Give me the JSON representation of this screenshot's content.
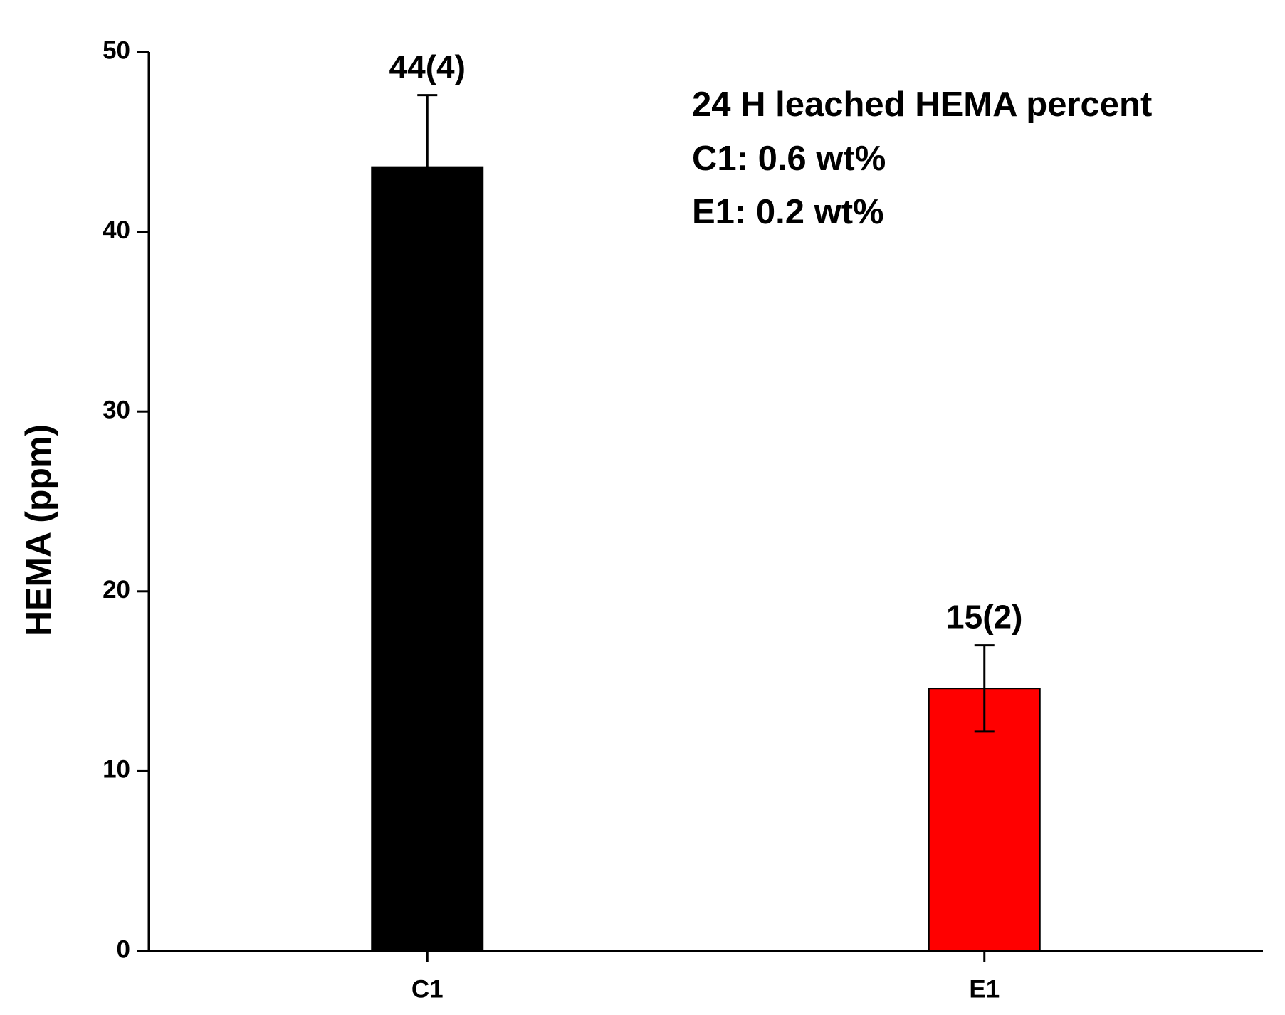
{
  "chart_data": {
    "type": "bar",
    "y_label": "HEMA (ppm)",
    "annotations": [
      "24 H leached HEMA percent",
      "C1: 0.6 wt%",
      "E1: 0.2 wt%"
    ],
    "categories": [
      "C1",
      "E1"
    ],
    "values": [
      43.6,
      14.6
    ],
    "errors": [
      4,
      2.4
    ],
    "value_labels": [
      "44(4)",
      "15(2)"
    ],
    "colors": [
      "#000000",
      "#ff0000"
    ],
    "ylim": [
      0,
      50
    ],
    "yticks": [
      0,
      10,
      20,
      30,
      40,
      50
    ]
  }
}
